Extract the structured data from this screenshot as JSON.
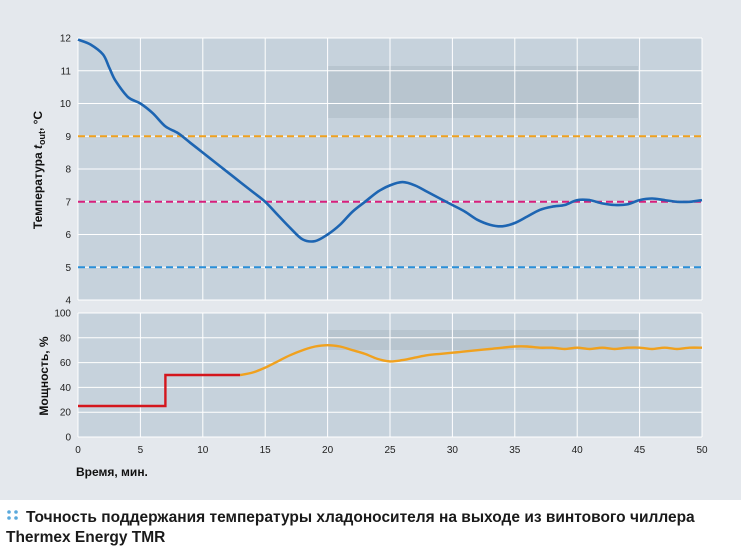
{
  "caption": "Точность поддержания температуры хладоносителя на выходе из винтового чиллера Thermex Energy TMR",
  "colors": {
    "plot_bg": "#c6d2dc",
    "frame_bg": "#e4e8ed",
    "band": "#b8c5cf",
    "grid": "#ffffff",
    "temp_line": "#1d65b2",
    "upper_limit": "#f0a11e",
    "setpoint": "#d81f7c",
    "lower_limit": "#2a8fd8",
    "power_start": "#d4161d",
    "power_line": "#f0a11e",
    "caption_dots": "#5aa9dc"
  },
  "chart_data": [
    {
      "type": "line",
      "ylabel_main": "Температура ",
      "ylabel_italic": "t",
      "ylabel_sub": "out",
      "ylabel_unit": ", °C",
      "xlim": [
        0,
        50
      ],
      "ylim": [
        4,
        12
      ],
      "yticks": [
        "4",
        "5",
        "6",
        "7",
        "8",
        "9",
        "10",
        "11",
        "12"
      ],
      "grid": true,
      "series": [
        {
          "role": "temperature",
          "x": [
            0,
            1,
            2,
            2.5,
            3,
            4,
            5,
            6,
            7,
            8,
            9,
            10,
            11,
            12,
            13,
            14,
            15,
            16,
            17,
            18,
            19,
            20,
            21,
            22,
            23,
            24,
            25,
            26,
            27,
            28,
            29,
            30,
            31,
            32,
            33,
            34,
            35,
            36,
            37,
            38,
            39,
            40,
            41,
            42,
            43,
            44,
            45,
            46,
            47,
            48,
            49,
            50
          ],
          "y": [
            11.95,
            11.8,
            11.5,
            11.1,
            10.7,
            10.2,
            10.0,
            9.7,
            9.3,
            9.1,
            8.8,
            8.5,
            8.2,
            7.9,
            7.6,
            7.3,
            7.0,
            6.6,
            6.2,
            5.85,
            5.8,
            6.0,
            6.3,
            6.7,
            7.0,
            7.3,
            7.5,
            7.6,
            7.5,
            7.3,
            7.1,
            6.9,
            6.7,
            6.45,
            6.3,
            6.25,
            6.35,
            6.55,
            6.75,
            6.85,
            6.9,
            7.05,
            7.05,
            6.95,
            6.9,
            6.92,
            7.05,
            7.1,
            7.05,
            7.0,
            7.0,
            7.05
          ]
        }
      ],
      "reference_lines": [
        {
          "role": "upper",
          "y": 9,
          "style": "dashed"
        },
        {
          "role": "setpoint",
          "y": 7,
          "style": "dashed"
        },
        {
          "role": "lower",
          "y": 5,
          "style": "dashed"
        }
      ]
    },
    {
      "type": "line",
      "ylabel": "Мощность, %",
      "xlabel": "Время, мин.",
      "xlim": [
        0,
        50
      ],
      "ylim": [
        0,
        100
      ],
      "xticks": [
        "0",
        "5",
        "10",
        "15",
        "20",
        "25",
        "30",
        "35",
        "40",
        "45",
        "50"
      ],
      "yticks": [
        "0",
        "20",
        "40",
        "60",
        "80",
        "100"
      ],
      "grid": true,
      "series": [
        {
          "role": "power-step",
          "x": [
            0,
            7,
            7,
            13
          ],
          "y": [
            25,
            25,
            50,
            50
          ]
        },
        {
          "role": "power",
          "x": [
            13,
            14,
            15,
            16,
            17,
            18,
            19,
            20,
            21,
            22,
            23,
            24,
            25,
            26,
            27,
            28,
            29,
            30,
            31,
            32,
            33,
            34,
            35,
            36,
            37,
            38,
            39,
            40,
            41,
            42,
            43,
            44,
            45,
            46,
            47,
            48,
            49,
            50
          ],
          "y": [
            50,
            52,
            56,
            61,
            66,
            70,
            73,
            74,
            73,
            70,
            67,
            63,
            61,
            62,
            64,
            66,
            67,
            68,
            69,
            70,
            71,
            72,
            73,
            73,
            72,
            72,
            71,
            72,
            71,
            72,
            71,
            72,
            72,
            71,
            72,
            71,
            72,
            72
          ]
        }
      ]
    }
  ]
}
